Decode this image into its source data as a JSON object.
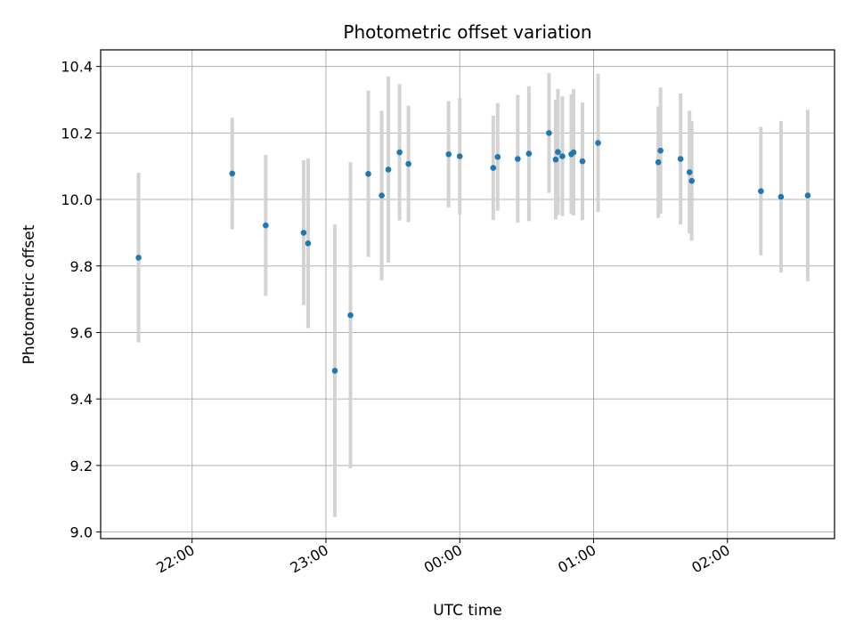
{
  "chart_data": {
    "type": "scatter",
    "title": "Photometric offset variation",
    "xlabel": "UTC time",
    "ylabel": "Photometric offset",
    "x_unit": "UTC time (HH:MM)",
    "xlim": [
      "21:19",
      "02:48"
    ],
    "ylim": [
      8.98,
      10.45
    ],
    "x_ticks": [
      "22:00",
      "23:00",
      "00:00",
      "01:00",
      "02:00"
    ],
    "y_ticks": [
      "9.0",
      "9.2",
      "9.4",
      "9.6",
      "9.8",
      "10.0",
      "10.2",
      "10.4"
    ],
    "grid": true,
    "colors": {
      "point": "#1f77b4",
      "errorbar": "#d3d3d3",
      "grid": "#b0b0b0"
    },
    "series": [
      {
        "points": [
          {
            "x": "21:36",
            "y": 9.825,
            "err": 0.255
          },
          {
            "x": "22:18",
            "y": 10.078,
            "err": 0.168
          },
          {
            "x": "22:33",
            "y": 9.922,
            "err": 0.212
          },
          {
            "x": "22:50",
            "y": 9.9,
            "err": 0.218
          },
          {
            "x": "22:52",
            "y": 9.868,
            "err": 0.255
          },
          {
            "x": "23:04",
            "y": 9.485,
            "err": 0.44
          },
          {
            "x": "23:11",
            "y": 9.652,
            "err": 0.46
          },
          {
            "x": "23:19",
            "y": 10.077,
            "err": 0.25
          },
          {
            "x": "23:25",
            "y": 10.012,
            "err": 0.255
          },
          {
            "x": "23:28",
            "y": 10.09,
            "err": 0.28
          },
          {
            "x": "23:33",
            "y": 10.142,
            "err": 0.205
          },
          {
            "x": "23:37",
            "y": 10.107,
            "err": 0.175
          },
          {
            "x": "23:55",
            "y": 10.136,
            "err": 0.16
          },
          {
            "x": "00:00",
            "y": 10.13,
            "err": 0.175
          },
          {
            "x": "00:15",
            "y": 10.095,
            "err": 0.157
          },
          {
            "x": "00:17",
            "y": 10.128,
            "err": 0.162
          },
          {
            "x": "00:26",
            "y": 10.122,
            "err": 0.192
          },
          {
            "x": "00:31",
            "y": 10.138,
            "err": 0.203
          },
          {
            "x": "00:40",
            "y": 10.2,
            "err": 0.18
          },
          {
            "x": "00:43",
            "y": 10.12,
            "err": 0.18
          },
          {
            "x": "00:44",
            "y": 10.143,
            "err": 0.19
          },
          {
            "x": "00:46",
            "y": 10.13,
            "err": 0.18
          },
          {
            "x": "00:50",
            "y": 10.136,
            "err": 0.18
          },
          {
            "x": "00:51",
            "y": 10.142,
            "err": 0.19
          },
          {
            "x": "00:55",
            "y": 10.115,
            "err": 0.177
          },
          {
            "x": "01:02",
            "y": 10.17,
            "err": 0.208
          },
          {
            "x": "01:29",
            "y": 10.112,
            "err": 0.168
          },
          {
            "x": "01:30",
            "y": 10.147,
            "err": 0.19
          },
          {
            "x": "01:39",
            "y": 10.122,
            "err": 0.197
          },
          {
            "x": "01:43",
            "y": 10.082,
            "err": 0.185
          },
          {
            "x": "01:44",
            "y": 10.056,
            "err": 0.18
          },
          {
            "x": "02:15",
            "y": 10.025,
            "err": 0.193
          },
          {
            "x": "02:24",
            "y": 10.008,
            "err": 0.228
          },
          {
            "x": "02:36",
            "y": 10.012,
            "err": 0.258
          }
        ]
      }
    ]
  }
}
